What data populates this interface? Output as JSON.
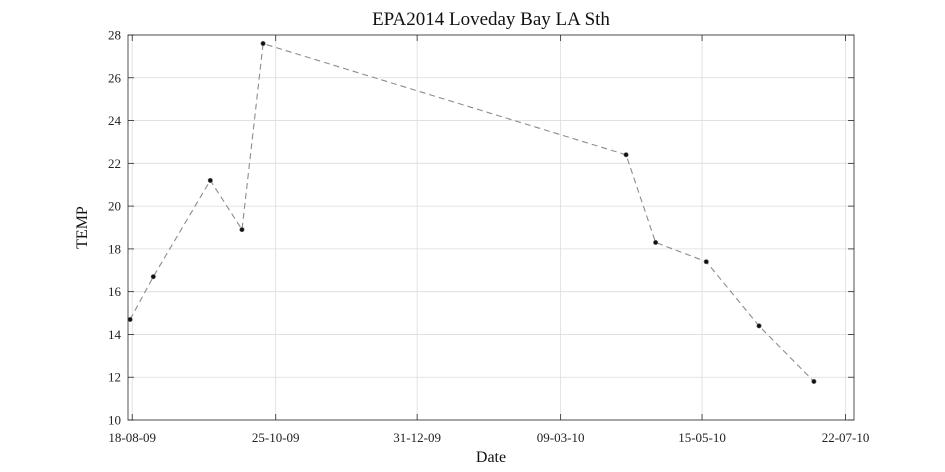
{
  "chart_data": {
    "type": "line",
    "title": "EPA2014 Loveday Bay LA Sth",
    "xlabel": "Date",
    "ylabel": "TEMP",
    "x_axis": {
      "type": "date",
      "range": [
        "2009-08-16",
        "2010-07-26"
      ],
      "ticks": [
        {
          "date": "2009-08-18",
          "label": "18-08-09"
        },
        {
          "date": "2009-10-25",
          "label": "25-10-09"
        },
        {
          "date": "2009-12-31",
          "label": "31-12-09"
        },
        {
          "date": "2010-03-09",
          "label": "09-03-10"
        },
        {
          "date": "2010-05-15",
          "label": "15-05-10"
        },
        {
          "date": "2010-07-22",
          "label": "22-07-10"
        }
      ]
    },
    "y_axis": {
      "range": [
        10,
        28
      ],
      "ticks": [
        10,
        12,
        14,
        16,
        18,
        20,
        22,
        24,
        26,
        28
      ]
    },
    "grid": true,
    "series": [
      {
        "line_style": "dashed",
        "line_color": "#8c8c8c",
        "marker_color": "#111111",
        "points": [
          {
            "x": "2009-08-17",
            "y": 14.7
          },
          {
            "x": "2009-08-28",
            "y": 16.7
          },
          {
            "x": "2009-09-24",
            "y": 21.2
          },
          {
            "x": "2009-10-09",
            "y": 18.9
          },
          {
            "x": "2009-10-19",
            "y": 27.6
          },
          {
            "x": "2010-04-09",
            "y": 22.4
          },
          {
            "x": "2010-04-23",
            "y": 18.3
          },
          {
            "x": "2010-05-17",
            "y": 17.4
          },
          {
            "x": "2010-06-11",
            "y": 14.4
          },
          {
            "x": "2010-07-07",
            "y": 11.8
          }
        ]
      }
    ]
  }
}
